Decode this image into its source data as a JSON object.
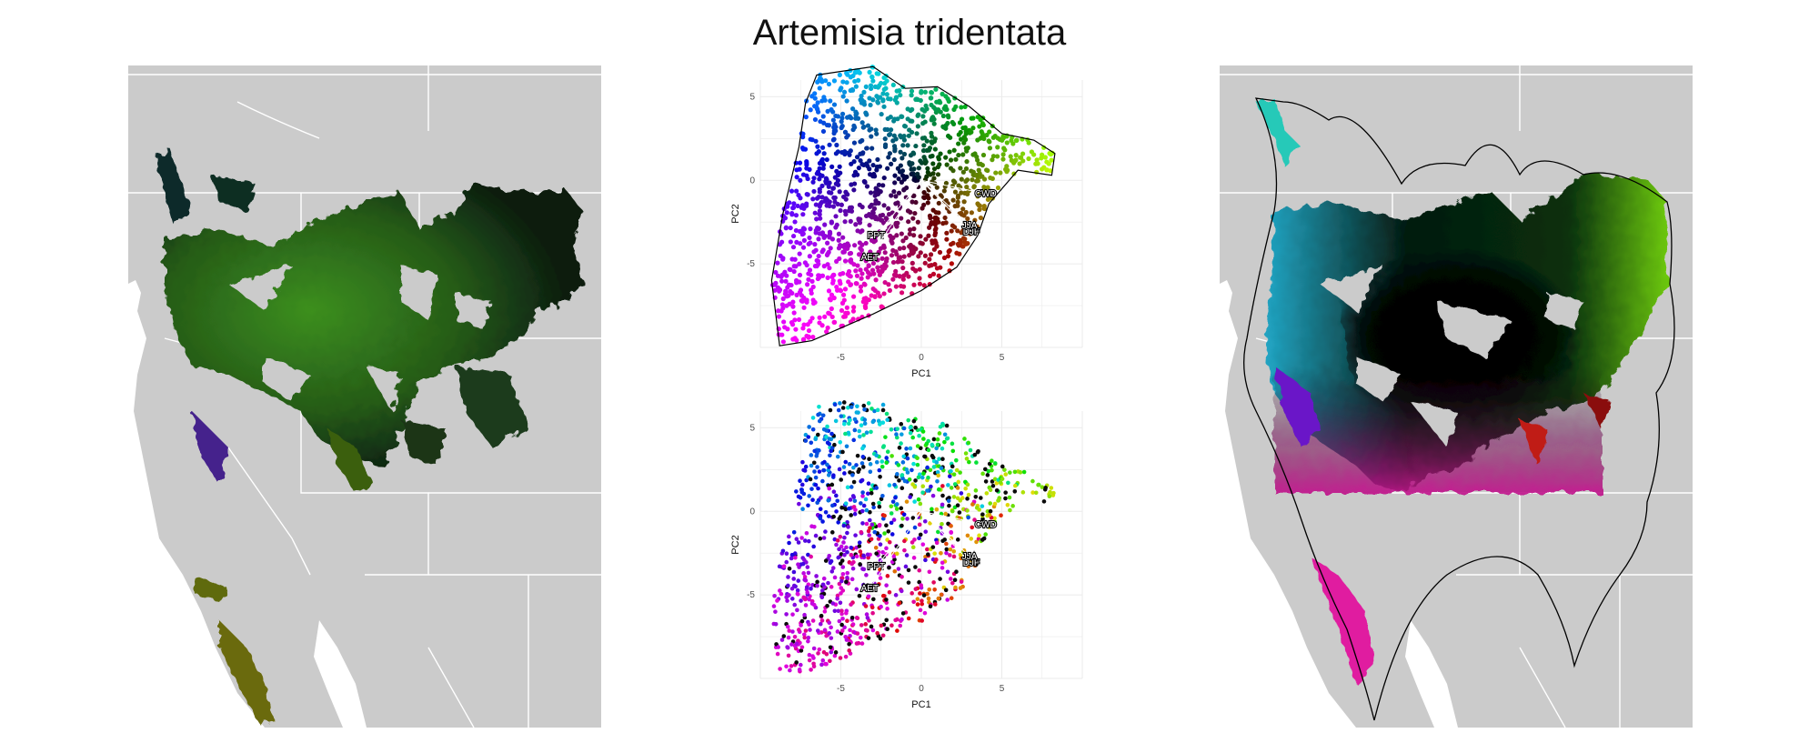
{
  "figure": {
    "title": "Artemisia tridentata"
  },
  "chart_data": [
    {
      "type": "map",
      "panel": "left-map",
      "description_colors": {
        "background": "#cbcbcb",
        "borders": "#ffffff",
        "dominant": "#2f7a1e"
      }
    },
    {
      "type": "scatter",
      "panel": "pca-top",
      "xlabel": "PC1",
      "ylabel": "PC2",
      "xticks": [
        -5,
        0,
        5
      ],
      "yticks": [
        5,
        0,
        -5
      ],
      "xlim": [
        -10,
        10
      ],
      "ylim": [
        -10,
        6
      ],
      "loadings": [
        {
          "label": "CWD",
          "x": 4.0,
          "y": -0.8
        },
        {
          "label": "PPT",
          "x": -2.8,
          "y": -3.3
        },
        {
          "label": "AET",
          "x": -3.2,
          "y": -4.6
        },
        {
          "label": "DJF",
          "x": 3.1,
          "y": -3.1
        },
        {
          "label": "JJA",
          "x": 3.0,
          "y": -2.7
        }
      ]
    },
    {
      "type": "scatter",
      "panel": "pca-bottom",
      "xlabel": "PC1",
      "ylabel": "PC2",
      "xticks": [
        -5,
        0,
        5
      ],
      "yticks": [
        5,
        0,
        -5
      ],
      "xlim": [
        -10,
        10
      ],
      "ylim": [
        -10,
        6
      ],
      "loadings": [
        {
          "label": "CWD",
          "x": 4.0,
          "y": -0.8
        },
        {
          "label": "PPT",
          "x": -2.8,
          "y": -3.3
        },
        {
          "label": "AET",
          "x": -3.2,
          "y": -4.6
        },
        {
          "label": "DJF",
          "x": 3.1,
          "y": -3.1
        },
        {
          "label": "JJA",
          "x": 3.0,
          "y": -2.7
        }
      ]
    },
    {
      "type": "map",
      "panel": "right-map",
      "description_colors": {
        "background": "#cbcbcb",
        "borders": "#ffffff",
        "hull": "#000000"
      }
    }
  ]
}
